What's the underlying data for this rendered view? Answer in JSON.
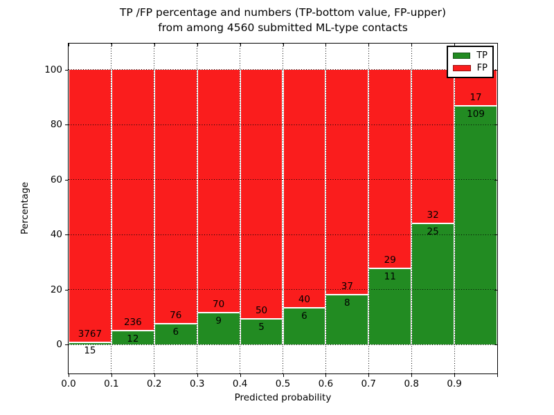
{
  "chart_data": {
    "type": "bar",
    "stacked": true,
    "normalized_to_percent": true,
    "title_line1": "TP /FP percentage and numbers (TP-bottom value, FP-upper)",
    "title_line2": "from among 4560 submitted ML-type contacts",
    "xlabel": "Predicted probability",
    "ylabel": "Percentage",
    "total_contacts": 4560,
    "categories": [
      "0.0-0.1",
      "0.1-0.2",
      "0.2-0.3",
      "0.3-0.4",
      "0.4-0.5",
      "0.5-0.6",
      "0.6-0.7",
      "0.7-0.8",
      "0.8-0.9",
      "0.9-1.0"
    ],
    "series": [
      {
        "name": "TP",
        "color": "#228b22",
        "values": [
          15,
          12,
          6,
          9,
          5,
          6,
          8,
          11,
          25,
          109
        ]
      },
      {
        "name": "FP",
        "color": "#fa1d1d",
        "values": [
          3767,
          236,
          76,
          70,
          50,
          40,
          37,
          29,
          32,
          17
        ]
      }
    ],
    "x_tick_labels": [
      "0.0",
      "0.1",
      "0.2",
      "0.3",
      "0.4",
      "0.5",
      "0.6",
      "0.7",
      "0.8",
      "0.9"
    ],
    "y_ticks": [
      0,
      20,
      40,
      60,
      80,
      100
    ],
    "xlim": [
      0.0,
      1.0
    ],
    "ylim": [
      -10.6,
      109.4
    ],
    "grid": "dotted",
    "legend_position": "upper right",
    "legend": [
      {
        "label": "TP",
        "color": "#228b22"
      },
      {
        "label": "FP",
        "color": "#fa1d1d"
      }
    ]
  }
}
